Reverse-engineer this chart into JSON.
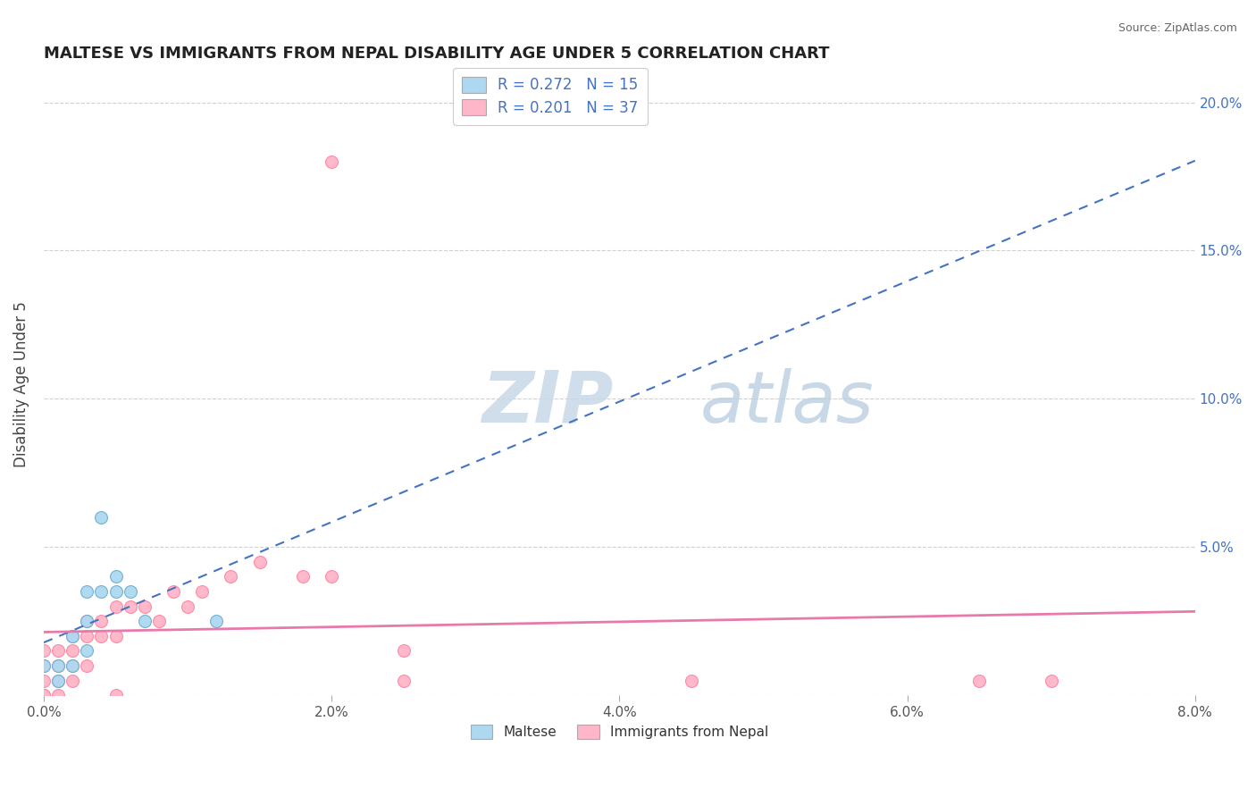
{
  "title": "MALTESE VS IMMIGRANTS FROM NEPAL DISABILITY AGE UNDER 5 CORRELATION CHART",
  "source": "Source: ZipAtlas.com",
  "legend_bottom_1": "Maltese",
  "legend_bottom_2": "Immigrants from Nepal",
  "ylabel": "Disability Age Under 5",
  "xlim": [
    0.0,
    0.08
  ],
  "ylim": [
    0.0,
    0.21
  ],
  "x_ticks": [
    0.0,
    0.02,
    0.04,
    0.06,
    0.08
  ],
  "y_ticks_left": [
    0.0,
    0.05,
    0.1,
    0.15,
    0.2
  ],
  "y_ticks_right_labels": [
    "20.0%",
    "15.0%",
    "10.0%",
    "5.0%"
  ],
  "y_ticks_right_vals": [
    0.2,
    0.15,
    0.1,
    0.05
  ],
  "x_tick_labels": [
    "0.0%",
    "2.0%",
    "4.0%",
    "6.0%",
    "8.0%"
  ],
  "legend_r1": "R = 0.272",
  "legend_n1": "N = 15",
  "legend_r2": "R = 0.201",
  "legend_n2": "N = 37",
  "blue_fill_color": "#ADD8F0",
  "pink_fill_color": "#FFB6C8",
  "blue_edge_color": "#6AAED6",
  "pink_edge_color": "#FF85A1",
  "blue_trend_color": "#4472C4",
  "pink_trend_color": "#E87AAA",
  "grid_color": "#D0D0D0",
  "watermark_text_color": "#D0DCE8",
  "rn_text_color": "#4472C4",
  "maltese_x": [
    0.0,
    0.001,
    0.001,
    0.002,
    0.002,
    0.003,
    0.003,
    0.003,
    0.004,
    0.004,
    0.005,
    0.005,
    0.006,
    0.007,
    0.012
  ],
  "maltese_y": [
    0.01,
    0.005,
    0.01,
    0.01,
    0.02,
    0.015,
    0.025,
    0.035,
    0.035,
    0.06,
    0.035,
    0.04,
    0.035,
    0.025,
    0.025
  ],
  "nepal_x": [
    0.0,
    0.0,
    0.0,
    0.0,
    0.0,
    0.001,
    0.001,
    0.001,
    0.001,
    0.002,
    0.002,
    0.002,
    0.002,
    0.003,
    0.003,
    0.003,
    0.004,
    0.004,
    0.005,
    0.005,
    0.005,
    0.006,
    0.007,
    0.008,
    0.009,
    0.01,
    0.011,
    0.013,
    0.015,
    0.018,
    0.02,
    0.02,
    0.025,
    0.025,
    0.045,
    0.065,
    0.07
  ],
  "nepal_y": [
    0.0,
    0.0,
    0.005,
    0.01,
    0.015,
    0.0,
    0.005,
    0.01,
    0.015,
    0.005,
    0.01,
    0.015,
    0.02,
    0.01,
    0.02,
    0.025,
    0.02,
    0.025,
    0.0,
    0.02,
    0.03,
    0.03,
    0.03,
    0.025,
    0.035,
    0.03,
    0.035,
    0.04,
    0.045,
    0.04,
    0.04,
    0.18,
    0.005,
    0.015,
    0.005,
    0.005,
    0.005
  ],
  "blue_trend_x": [
    0.0,
    0.08
  ],
  "pink_trend_x": [
    0.0,
    0.08
  ]
}
